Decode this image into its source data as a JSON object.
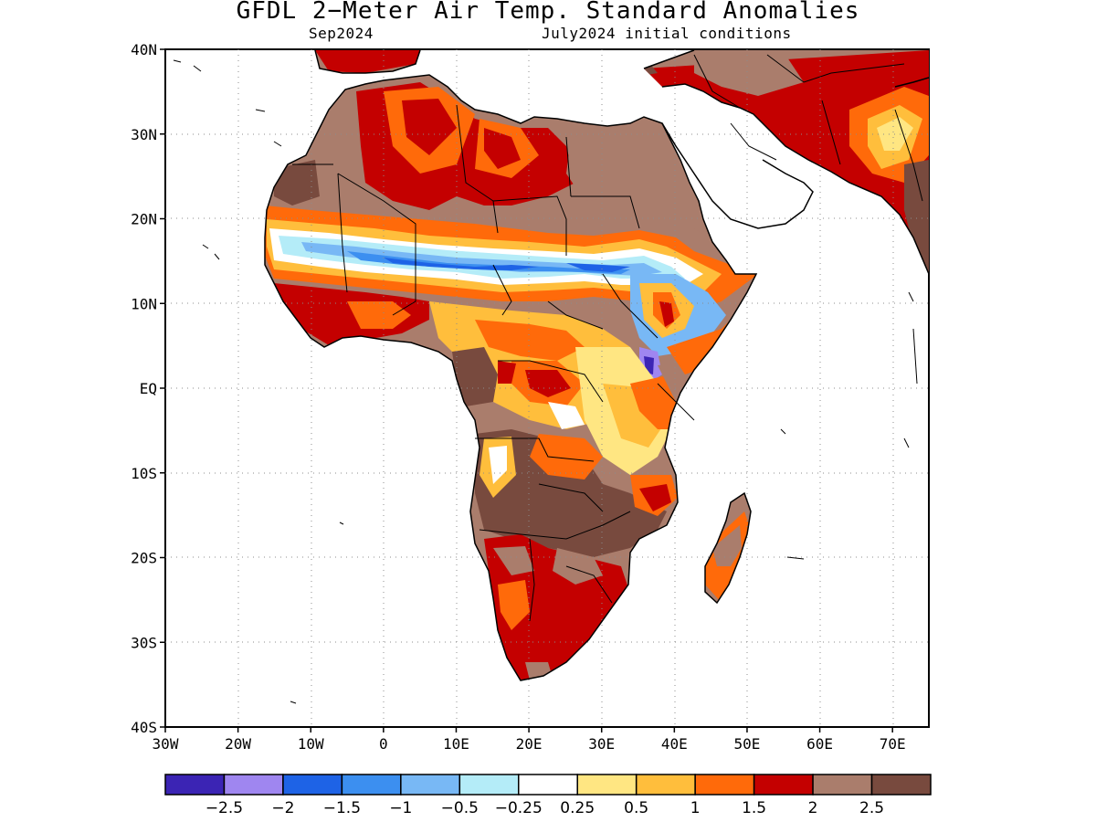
{
  "title": "GFDL 2−Meter Air Temp. Standard Anomalies",
  "subtitle_left": "Sep2024",
  "subtitle_right": "July2024 initial conditions",
  "map": {
    "lon_range": [
      -30,
      75
    ],
    "lat_range": [
      -40,
      40
    ],
    "lat_ticks": [
      {
        "value": 40,
        "label": "40N"
      },
      {
        "value": 30,
        "label": "30N"
      },
      {
        "value": 20,
        "label": "20N"
      },
      {
        "value": 10,
        "label": "10N"
      },
      {
        "value": 0,
        "label": "EQ"
      },
      {
        "value": -10,
        "label": "10S"
      },
      {
        "value": -20,
        "label": "20S"
      },
      {
        "value": -30,
        "label": "30S"
      },
      {
        "value": -40,
        "label": "40S"
      }
    ],
    "lon_ticks": [
      {
        "value": -30,
        "label": "30W"
      },
      {
        "value": -20,
        "label": "20W"
      },
      {
        "value": -10,
        "label": "10W"
      },
      {
        "value": 0,
        "label": "0"
      },
      {
        "value": 10,
        "label": "10E"
      },
      {
        "value": 20,
        "label": "20E"
      },
      {
        "value": 30,
        "label": "30E"
      },
      {
        "value": 40,
        "label": "40E"
      },
      {
        "value": 50,
        "label": "50E"
      },
      {
        "value": 60,
        "label": "60E"
      },
      {
        "value": 70,
        "label": "70E"
      }
    ],
    "gridlines": "dotted"
  },
  "colorbar": {
    "colors": [
      "#3b24b4",
      "#9f86f0",
      "#1e63e6",
      "#3c8ff0",
      "#78b8f5",
      "#b4ecf8",
      "#ffffff",
      "#ffe682",
      "#ffbe3c",
      "#ff6a0a",
      "#c40000",
      "#aa7d6c",
      "#784a3e"
    ],
    "labels": [
      "−2.5",
      "−2",
      "−1.5",
      "−1",
      "−0.5",
      "−0.25",
      "0.25",
      "0.5",
      "1",
      "1.5",
      "2",
      "2.5"
    ]
  }
}
